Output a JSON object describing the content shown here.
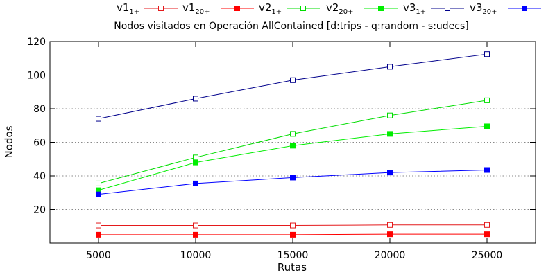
{
  "chart_data": {
    "type": "line",
    "title": "Nodos visitados en Operación AllContained [d:trips - q:random - s:udecs]",
    "xlabel": "Rutas",
    "ylabel": "Nodos",
    "x": [
      5000,
      10000,
      15000,
      20000,
      25000
    ],
    "x_ticks": [
      "5000",
      "10000",
      "15000",
      "20000",
      "25000"
    ],
    "xlim": [
      2500,
      27500
    ],
    "ylim": [
      0,
      120
    ],
    "y_ticks": [
      "20",
      "40",
      "60",
      "80",
      "100",
      "120"
    ],
    "grid": "horizontal dotted",
    "legend_position": "top",
    "series": [
      {
        "name": "v1",
        "subscript": "1+",
        "color": "#e41a1c",
        "marker": "open-square",
        "values": [
          10.5,
          10.5,
          10.5,
          10.8,
          10.8
        ]
      },
      {
        "name": "v1",
        "subscript": "20+",
        "color": "#ff0000",
        "marker": "filled-square",
        "values": [
          5,
          5,
          5,
          5.3,
          5.3
        ]
      },
      {
        "name": "v2",
        "subscript": "1+",
        "color": "#00dd00",
        "marker": "open-square",
        "values": [
          35.5,
          51,
          65,
          76,
          85
        ]
      },
      {
        "name": "v2",
        "subscript": "20+",
        "color": "#00ee00",
        "marker": "filled-square",
        "values": [
          31.5,
          48,
          58,
          65,
          69.5
        ]
      },
      {
        "name": "v3",
        "subscript": "1+",
        "color": "#00008b",
        "marker": "open-square",
        "values": [
          74,
          86,
          97,
          105,
          112.5
        ]
      },
      {
        "name": "v3",
        "subscript": "20+",
        "color": "#0000ff",
        "marker": "filled-square",
        "values": [
          29,
          35.5,
          39,
          42,
          43.5
        ]
      }
    ]
  }
}
